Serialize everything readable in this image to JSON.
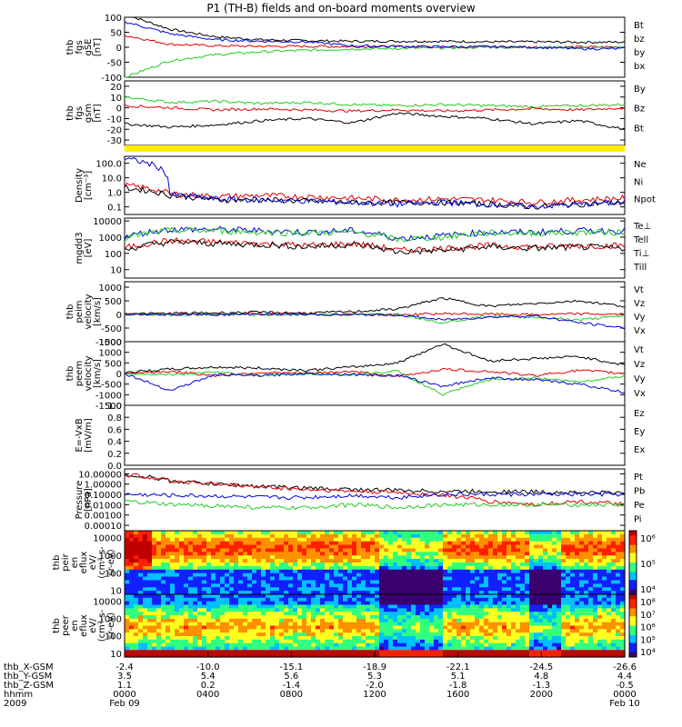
{
  "title": "P1 (TH-B) fields and on-board moments overview",
  "colors": {
    "black": "#000000",
    "red": "#e00000",
    "green": "#22cc22",
    "blue": "#0000dd",
    "yellow": "#ffee00"
  },
  "chart_data": [
    {
      "id": "fgs_gse",
      "type": "line",
      "ylabel": [
        "thb",
        "fgs",
        "gSE",
        "[nT]"
      ],
      "ylim": [
        -100,
        100
      ],
      "ticks": [
        "100",
        "50",
        "0",
        "-50",
        "-100"
      ],
      "tick_values": [
        100,
        50,
        0,
        -50,
        -100
      ],
      "series": [
        {
          "name": "Bt",
          "color": "black",
          "values": [
            110,
            60,
            35,
            25,
            22,
            20,
            20,
            20,
            18,
            18,
            17,
            17
          ]
        },
        {
          "name": "bz",
          "color": "red",
          "values": [
            40,
            10,
            5,
            3,
            3,
            2,
            2,
            1,
            1,
            1,
            1,
            1
          ]
        },
        {
          "name": "by",
          "color": "green",
          "values": [
            -100,
            -45,
            -25,
            -15,
            -10,
            -6,
            -4,
            -2,
            0,
            0,
            -1,
            -2
          ]
        },
        {
          "name": "bx",
          "color": "blue",
          "values": [
            85,
            45,
            25,
            20,
            18,
            5,
            3,
            2,
            2,
            0,
            -5,
            -5
          ]
        }
      ]
    },
    {
      "id": "fgs_gsm",
      "type": "line",
      "ylabel": [
        "thb",
        "fgs",
        "gsm",
        "[nT]"
      ],
      "ylim": [
        -35,
        25
      ],
      "ticks": [
        "20",
        "10",
        "0",
        "-10",
        "-20",
        "-30"
      ],
      "tick_values": [
        20,
        10,
        0,
        -10,
        -20,
        -30
      ],
      "series": [
        {
          "name": "By",
          "color": "green",
          "values": [
            10,
            5,
            6,
            4,
            5,
            3,
            2,
            3,
            2,
            1,
            2,
            3
          ]
        },
        {
          "name": "Bz",
          "color": "red",
          "values": [
            2,
            0,
            -2,
            -1,
            -2,
            -3,
            -2,
            -3,
            -2,
            -1,
            -2,
            0
          ]
        },
        {
          "name": "Bt",
          "color": "black",
          "values": [
            -15,
            -18,
            -16,
            -12,
            -10,
            -14,
            -5,
            -8,
            -10,
            -15,
            -12,
            -20
          ]
        }
      ]
    },
    {
      "id": "state_bar",
      "type": "bar",
      "color": "yellow",
      "values": [
        1
      ]
    },
    {
      "id": "density",
      "type": "line",
      "scale": "log",
      "ylabel": [
        "Density",
        "[cm⁻³]"
      ],
      "ylim": [
        0.03,
        300
      ],
      "ticks": [
        "100.0",
        "10.0",
        "1.0",
        "0.1"
      ],
      "tick_values": [
        100,
        10,
        1,
        0.1
      ],
      "series": [
        {
          "name": "Ne",
          "color": "red",
          "values": [
            3,
            0.8,
            0.5,
            0.6,
            0.5,
            0.4,
            0.3,
            0.35,
            0.3,
            0.2,
            0.3,
            0.4
          ]
        },
        {
          "name": "Ni",
          "color": "black",
          "values": [
            2,
            0.6,
            0.3,
            0.3,
            0.25,
            0.2,
            0.2,
            0.2,
            0.15,
            0.1,
            0.15,
            0.2
          ]
        },
        {
          "name": "Npot",
          "color": "blue",
          "values": [
            200,
            0.7,
            0.35,
            0.3,
            0.25,
            0.2,
            0.15,
            0.2,
            0.15,
            0.1,
            0.15,
            0.2
          ]
        }
      ]
    },
    {
      "id": "temperature",
      "type": "line",
      "scale": "log",
      "ylabel": [
        "mgdd3",
        "[eV]"
      ],
      "ylim": [
        3,
        15000
      ],
      "ticks": [
        "10000",
        "1000",
        "100",
        "10"
      ],
      "tick_values": [
        10000,
        1000,
        100,
        10
      ],
      "series": [
        {
          "name": "Te⊥",
          "color": "red",
          "values": [
            200,
            600,
            500,
            400,
            300,
            400,
            150,
            200,
            300,
            250,
            300,
            300
          ]
        },
        {
          "name": "Tell",
          "color": "black",
          "values": [
            150,
            500,
            400,
            350,
            250,
            350,
            120,
            150,
            250,
            200,
            250,
            200
          ]
        },
        {
          "name": "Ti⊥",
          "color": "blue",
          "values": [
            1000,
            3000,
            3000,
            2500,
            2000,
            2500,
            800,
            1200,
            2000,
            2000,
            2500,
            2500
          ]
        },
        {
          "name": "Till",
          "color": "green",
          "values": [
            800,
            2500,
            2500,
            2000,
            1800,
            2000,
            700,
            1000,
            1800,
            1800,
            2000,
            2000
          ]
        }
      ]
    },
    {
      "id": "peim_velocity",
      "type": "line",
      "ylabel": [
        "thb",
        "peim",
        "velocity",
        "[km/s]"
      ],
      "ylim": [
        -1000,
        1200
      ],
      "ticks": [
        "1000",
        "500",
        "0",
        "-500",
        "-1000"
      ],
      "tick_values": [
        1000,
        500,
        0,
        -500,
        -1000
      ],
      "series": [
        {
          "name": "Vt",
          "color": "black",
          "values": [
            20,
            40,
            60,
            80,
            50,
            100,
            200,
            600,
            300,
            400,
            500,
            300
          ]
        },
        {
          "name": "Vz",
          "color": "red",
          "values": [
            0,
            10,
            -10,
            20,
            0,
            10,
            -20,
            30,
            10,
            -10,
            20,
            0
          ]
        },
        {
          "name": "Vy",
          "color": "green",
          "values": [
            0,
            -10,
            10,
            -20,
            0,
            -10,
            20,
            -300,
            -50,
            -100,
            -200,
            -50
          ]
        },
        {
          "name": "Vx",
          "color": "blue",
          "values": [
            0,
            5,
            -5,
            10,
            0,
            -10,
            -20,
            -200,
            -100,
            -50,
            -300,
            -500
          ]
        }
      ]
    },
    {
      "id": "peem_velocity",
      "type": "line",
      "ylabel": [
        "thb",
        "peem",
        "velocity",
        "[km/s]"
      ],
      "ylim": [
        -1500,
        1500
      ],
      "ticks": [
        "1500",
        "1000",
        "500",
        "0",
        "-500",
        "-1000",
        "-1500"
      ],
      "tick_values": [
        1500,
        1000,
        500,
        0,
        -500,
        -1000,
        -1500
      ],
      "series": [
        {
          "name": "Vt",
          "color": "black",
          "values": [
            50,
            200,
            300,
            250,
            150,
            300,
            500,
            1400,
            600,
            700,
            800,
            400
          ]
        },
        {
          "name": "Vz",
          "color": "red",
          "values": [
            0,
            100,
            -100,
            50,
            0,
            100,
            -150,
            200,
            100,
            -100,
            150,
            0
          ]
        },
        {
          "name": "Vy",
          "color": "green",
          "values": [
            0,
            -50,
            50,
            -100,
            0,
            -50,
            100,
            -1000,
            -300,
            -200,
            -400,
            -100
          ]
        },
        {
          "name": "Vx",
          "color": "blue",
          "values": [
            0,
            -800,
            -50,
            -100,
            0,
            -50,
            -100,
            -600,
            -200,
            -300,
            -500,
            -900
          ]
        }
      ]
    },
    {
      "id": "e_field",
      "type": "line",
      "ylabel": [
        "E=-VxB",
        "[mV/m]"
      ],
      "ylim": [
        0,
        1
      ],
      "ticks": [
        "1.0",
        "0.8",
        "0.6",
        "0.4",
        "0.2",
        "0.0"
      ],
      "tick_values": [
        1,
        0.8,
        0.6,
        0.4,
        0.2,
        0
      ],
      "series": [
        {
          "name": "Ez",
          "color": "red",
          "values": []
        },
        {
          "name": "Ey",
          "color": "green",
          "values": []
        },
        {
          "name": "Ex",
          "color": "blue",
          "values": []
        }
      ]
    },
    {
      "id": "pressure",
      "type": "line",
      "scale": "log",
      "ylabel": [
        "Pressure",
        "[nPa]"
      ],
      "ylim": [
        3e-05,
        30
      ],
      "ticks": [
        "10.00000",
        "1.00000",
        "0.10000",
        "0.01000",
        "0.00100",
        "0.00010"
      ],
      "tick_values": [
        10,
        1,
        0.1,
        0.01,
        0.001,
        0.0001
      ],
      "series": [
        {
          "name": "Pt",
          "color": "black",
          "values": [
            8,
            2,
            1,
            0.6,
            0.4,
            0.3,
            0.25,
            0.2,
            0.2,
            0.18,
            0.15,
            0.15
          ]
        },
        {
          "name": "Pb",
          "color": "red",
          "values": [
            8,
            2,
            1,
            0.5,
            0.3,
            0.2,
            0.15,
            0.08,
            0.02,
            0.01,
            0.02,
            0.01
          ]
        },
        {
          "name": "Pe",
          "color": "green",
          "values": [
            0.02,
            0.01,
            0.008,
            0.005,
            0.005,
            0.01,
            0.005,
            0.01,
            0.01,
            0.01,
            0.01,
            0.01
          ]
        },
        {
          "name": "Pi",
          "color": "blue",
          "values": [
            0.1,
            0.08,
            0.07,
            0.05,
            0.05,
            0.08,
            0.05,
            0.1,
            0.1,
            0.1,
            0.1,
            0.1
          ]
        }
      ]
    },
    {
      "id": "peir_spectrogram",
      "type": "heatmap",
      "scale": "log",
      "ylabel": [
        "thb",
        "peir",
        "en",
        "eflux",
        "eV/",
        "(cm²-s-",
        "sr-eV)"
      ],
      "ylim": [
        6,
        25000
      ],
      "ticks": [
        "10000",
        "1000",
        "100",
        "10"
      ],
      "tick_values": [
        10000,
        1000,
        100,
        10
      ],
      "colorbar": {
        "ticks": [
          "10⁶",
          "10⁵",
          "10⁴"
        ],
        "range": [
          "10³",
          "10⁷"
        ]
      }
    },
    {
      "id": "peer_spectrogram",
      "type": "heatmap",
      "scale": "log",
      "ylabel": [
        "thb",
        "peer",
        "en",
        "eflux",
        "eV/",
        "(cm²-s-",
        "sr-eV)"
      ],
      "ylim": [
        6,
        25000
      ],
      "ticks": [
        "10000",
        "1000",
        "100",
        "10"
      ],
      "tick_values": [
        10000,
        1000,
        100,
        10
      ],
      "colorbar": {
        "ticks": [
          "10⁸",
          "10⁷",
          "10⁶",
          "10⁵",
          "10⁴"
        ],
        "range": [
          "10³",
          "10⁸"
        ]
      }
    }
  ],
  "orbit_table": {
    "rows": [
      {
        "label": "thb_X-GSM",
        "values": [
          "-2.4",
          "-10.0",
          "-15.1",
          "-18.9",
          "-22.1",
          "-24.5",
          "-26.6"
        ]
      },
      {
        "label": "thb_Y-GSM",
        "values": [
          "3.5",
          "5.4",
          "5.6",
          "5.3",
          "5.1",
          "4.8",
          "4.4"
        ]
      },
      {
        "label": "thb_Z-GSM",
        "values": [
          "1.1",
          "0.2",
          "-1.4",
          "-2.0",
          "-1.8",
          "-1.3",
          "-0.5"
        ]
      },
      {
        "label": "hhmm",
        "values": [
          "0000",
          "0400",
          "0800",
          "1200",
          "1600",
          "2000",
          "0000"
        ]
      },
      {
        "label": "2009",
        "values": [
          "Feb 09",
          "",
          "",
          "",
          "",
          "",
          "Feb 10"
        ]
      }
    ]
  }
}
